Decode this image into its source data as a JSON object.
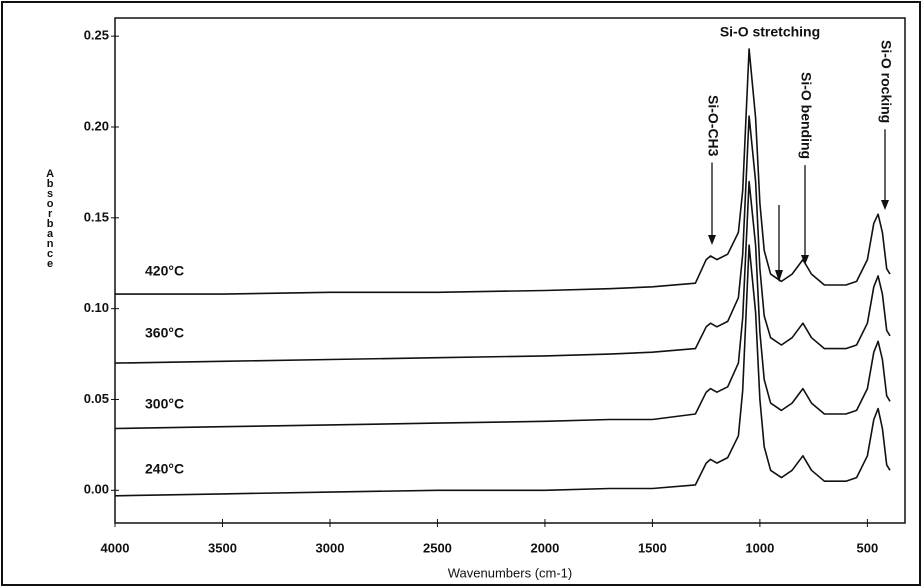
{
  "chart_data": {
    "type": "line",
    "xlabel": "Wavenumbers (cm-1)",
    "ylabel": "Absorbance",
    "x": [
      4000,
      3500,
      3000,
      2500,
      2000,
      1700,
      1500,
      1300,
      1250,
      1230,
      1200,
      1150,
      1100,
      1080,
      1050,
      1020,
      1000,
      980,
      950,
      900,
      850,
      800,
      760,
      700,
      650,
      600,
      550,
      500,
      470,
      450,
      430,
      410,
      395
    ],
    "series": [
      {
        "name": "420°C",
        "color": "#111111",
        "values": [
          0.108,
          0.108,
          0.109,
          0.109,
          0.11,
          0.111,
          0.112,
          0.114,
          0.127,
          0.129,
          0.127,
          0.13,
          0.142,
          0.165,
          0.243,
          0.205,
          0.158,
          0.132,
          0.119,
          0.115,
          0.119,
          0.127,
          0.119,
          0.113,
          0.113,
          0.113,
          0.115,
          0.127,
          0.147,
          0.152,
          0.142,
          0.122,
          0.119
        ]
      },
      {
        "name": "360°C",
        "color": "#111111",
        "values": [
          0.07,
          0.071,
          0.072,
          0.073,
          0.074,
          0.075,
          0.076,
          0.078,
          0.09,
          0.092,
          0.09,
          0.093,
          0.106,
          0.13,
          0.206,
          0.17,
          0.122,
          0.096,
          0.084,
          0.08,
          0.084,
          0.092,
          0.084,
          0.078,
          0.078,
          0.078,
          0.08,
          0.092,
          0.112,
          0.118,
          0.108,
          0.088,
          0.085
        ]
      },
      {
        "name": "300°C",
        "color": "#111111",
        "values": [
          0.034,
          0.035,
          0.036,
          0.037,
          0.038,
          0.039,
          0.039,
          0.042,
          0.054,
          0.056,
          0.054,
          0.057,
          0.07,
          0.095,
          0.17,
          0.135,
          0.087,
          0.061,
          0.048,
          0.044,
          0.048,
          0.056,
          0.048,
          0.042,
          0.042,
          0.042,
          0.044,
          0.056,
          0.076,
          0.082,
          0.072,
          0.052,
          0.049
        ]
      },
      {
        "name": "240°C",
        "color": "#111111",
        "values": [
          -0.003,
          -0.002,
          -0.001,
          0.0,
          0.0,
          0.001,
          0.001,
          0.003,
          0.015,
          0.017,
          0.015,
          0.018,
          0.03,
          0.055,
          0.135,
          0.098,
          0.05,
          0.024,
          0.011,
          0.007,
          0.011,
          0.019,
          0.011,
          0.005,
          0.005,
          0.005,
          0.007,
          0.019,
          0.039,
          0.045,
          0.034,
          0.014,
          0.011
        ]
      }
    ],
    "xlim": [
      4000,
      325
    ],
    "xticks": [
      4000,
      3500,
      3000,
      2500,
      2000,
      1500,
      1000,
      500
    ],
    "ylim": [
      -0.018,
      0.26
    ],
    "yticks": [
      {
        "value": 0,
        "label": "0.00"
      },
      0.05,
      {
        "value": 0.1,
        "label": "0.10"
      },
      0.15,
      {
        "value": 0.2,
        "label": "0.20"
      },
      0.25
    ],
    "annotations": [
      "Si-O stretching",
      "Si-O-CH3",
      "Si-O bending",
      "Si-O rocking"
    ]
  }
}
